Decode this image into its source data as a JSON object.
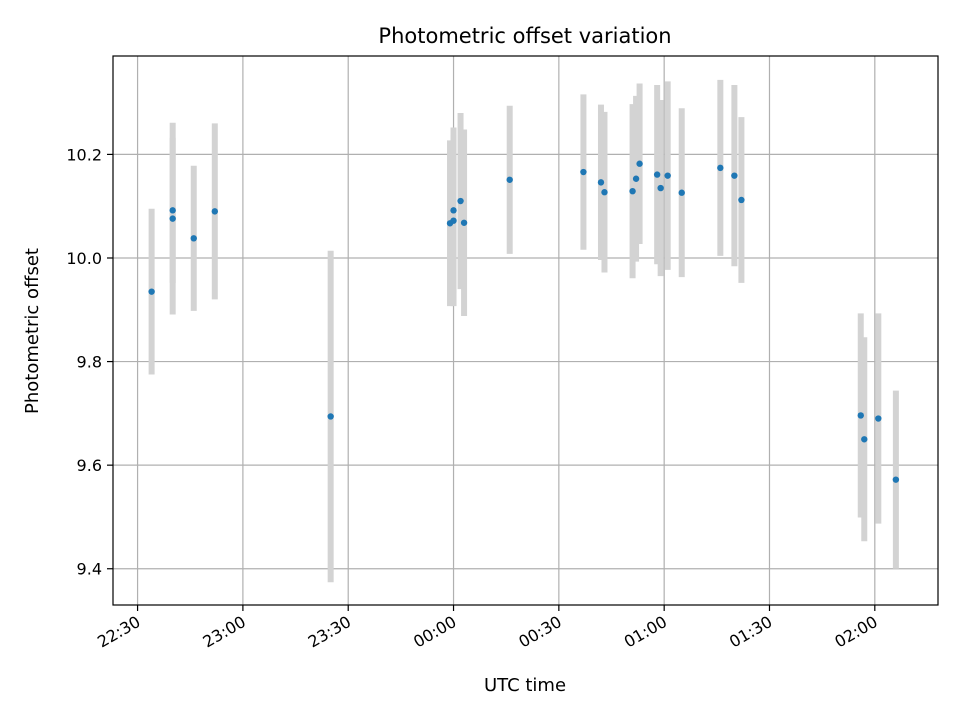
{
  "chart_data": {
    "type": "scatter",
    "title": "Photometric offset variation",
    "xlabel": "UTC time",
    "ylabel": "Photometric offset",
    "grid": true,
    "xlim": [
      "22:23",
      "02:18"
    ],
    "ylim": [
      9.33,
      10.39
    ],
    "x_ticks": [
      "22:30",
      "23:00",
      "23:30",
      "00:00",
      "00:30",
      "01:00",
      "01:30",
      "02:00"
    ],
    "y_ticks": [
      "9.4",
      "9.6",
      "9.8",
      "10.0",
      "10.2"
    ],
    "colors": {
      "point": "#1f77b4",
      "errorbar": "#d3d3d3",
      "grid": "#b0b0b0"
    },
    "points": [
      {
        "x": "22:34",
        "y": 9.935,
        "yerr": 0.16
      },
      {
        "x": "22:40",
        "y": 10.092,
        "yerr": 0.14
      },
      {
        "x": "22:40",
        "y": 10.076,
        "yerr": 0.185
      },
      {
        "x": "22:46",
        "y": 10.038,
        "yerr": 0.14
      },
      {
        "x": "22:52",
        "y": 10.09,
        "yerr": 0.17
      },
      {
        "x": "23:25",
        "y": 9.694,
        "yerr": 0.32
      },
      {
        "x": "23:59",
        "y": 10.067,
        "yerr": 0.16
      },
      {
        "x": "00:00",
        "y": 10.072,
        "yerr": 0.165
      },
      {
        "x": "00:00",
        "y": 10.092,
        "yerr": 0.16
      },
      {
        "x": "00:02",
        "y": 10.11,
        "yerr": 0.17
      },
      {
        "x": "00:03",
        "y": 10.068,
        "yerr": 0.18
      },
      {
        "x": "00:16",
        "y": 10.151,
        "yerr": 0.143
      },
      {
        "x": "00:37",
        "y": 10.166,
        "yerr": 0.15
      },
      {
        "x": "00:42",
        "y": 10.146,
        "yerr": 0.15
      },
      {
        "x": "00:43",
        "y": 10.127,
        "yerr": 0.155
      },
      {
        "x": "00:51",
        "y": 10.129,
        "yerr": 0.168
      },
      {
        "x": "00:52",
        "y": 10.153,
        "yerr": 0.16
      },
      {
        "x": "00:53",
        "y": 10.182,
        "yerr": 0.155
      },
      {
        "x": "00:58",
        "y": 10.161,
        "yerr": 0.173
      },
      {
        "x": "00:59",
        "y": 10.135,
        "yerr": 0.17
      },
      {
        "x": "01:01",
        "y": 10.159,
        "yerr": 0.182
      },
      {
        "x": "01:05",
        "y": 10.126,
        "yerr": 0.163
      },
      {
        "x": "01:16",
        "y": 10.174,
        "yerr": 0.17
      },
      {
        "x": "01:20",
        "y": 10.159,
        "yerr": 0.175
      },
      {
        "x": "01:22",
        "y": 10.112,
        "yerr": 0.16
      },
      {
        "x": "01:56",
        "y": 9.696,
        "yerr": 0.197
      },
      {
        "x": "01:57",
        "y": 9.65,
        "yerr": 0.197
      },
      {
        "x": "02:01",
        "y": 9.69,
        "yerr": 0.203
      },
      {
        "x": "02:06",
        "y": 9.572,
        "yerr": 0.172
      }
    ]
  }
}
